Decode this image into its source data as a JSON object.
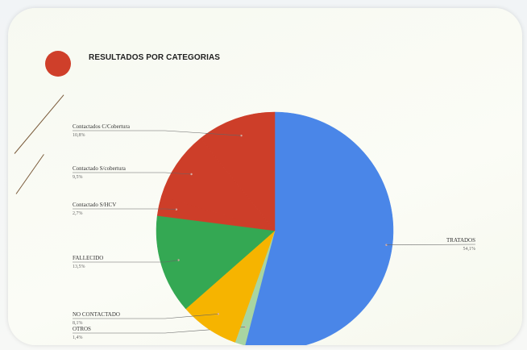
{
  "title": "RESULTADOS POR CATEGORIAS",
  "colors": {
    "accent": "#cf3f2a",
    "tratados": "#4a86e8",
    "otros": "#a8d5a2",
    "no_contactado": "#f6b400",
    "fallecido": "#34a853",
    "rojo": "#cd3e29"
  },
  "chart_data": {
    "type": "pie",
    "title": "",
    "slices": [
      {
        "label": "TRATADOS",
        "value_text": "54,1%",
        "value": 54.1,
        "color": "#4a86e8"
      },
      {
        "label": "OTROS",
        "value_text": "1,4%",
        "value": 1.4,
        "color": "#a8d5a2"
      },
      {
        "label": "NO CONTACTADO",
        "value_text": "8,1%",
        "value": 8.1,
        "color": "#f6b400"
      },
      {
        "label": "FALLECIDO",
        "value_text": "13,5%",
        "value": 13.5,
        "color": "#34a853"
      },
      {
        "label": "Contactado S/HCV",
        "value_text": "2,7%",
        "value": 2.7,
        "color": "#cd3e29"
      },
      {
        "label": "Contactado S/cobertura",
        "value_text": "9,5%",
        "value": 9.5,
        "color": "#cd3e29"
      },
      {
        "label": "Contactados C/Cobertura",
        "value_text": "10,8%",
        "value": 10.8,
        "color": "#cd3e29"
      }
    ]
  }
}
